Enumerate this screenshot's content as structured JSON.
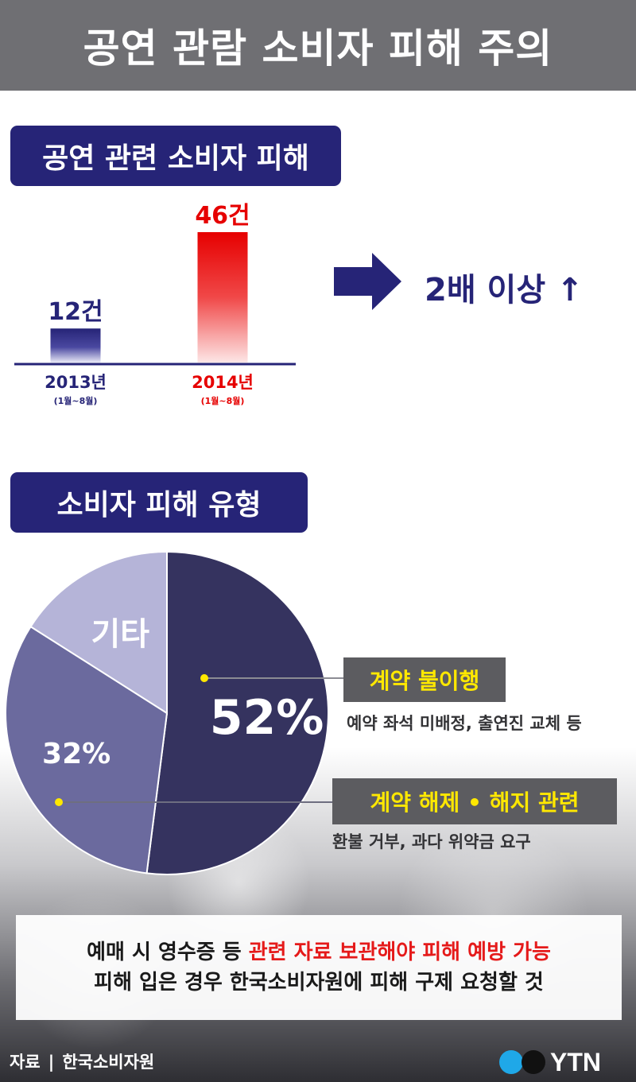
{
  "header": {
    "title": "공연 관람 소비자 피해 주의"
  },
  "section1": {
    "tag": "공연 관련 소비자 피해"
  },
  "section2": {
    "tag": "소비자 피해 유형"
  },
  "ratio": {
    "text": "2배 이상 ↑"
  },
  "pie_callouts": [
    {
      "label": "계약 불이행",
      "desc": "예약 좌석 미배정, 출연진 교체 등"
    },
    {
      "label": "계약 해제 • 해지 관련",
      "desc": "환불 거부, 과다 위약금 요구"
    }
  ],
  "note": {
    "line1_prefix": "예매 시 영수증 등 ",
    "line1_highlight": "관련 자료 보관해야 피해 예방 가능",
    "line2": "피해 입은 경우 한국소비자원에 피해 구제 요청할 것"
  },
  "source": {
    "label": "자료",
    "separator": "|",
    "value": "한국소비자원"
  },
  "logo": {
    "text": "YTN"
  },
  "colors": {
    "navy": "#262477",
    "red": "#e60000",
    "pie_dark": "#35335f",
    "pie_mid": "#6b6a9e",
    "pie_light": "#b5b4d8",
    "callout_bg": "#5c5c60",
    "callout_text": "#ffe800"
  },
  "chart_data": [
    {
      "type": "bar",
      "categories": [
        "2013년",
        "2014년"
      ],
      "periods": [
        "(1월~8월)",
        "(1월~8월)"
      ],
      "values": [
        12,
        46
      ],
      "value_labels": [
        "12건",
        "46건"
      ],
      "ylim": [
        0,
        46
      ]
    },
    {
      "type": "pie",
      "slices": [
        {
          "label": "계약 불이행",
          "value": 52,
          "value_label": "52%"
        },
        {
          "label": "계약 해제 • 해지 관련",
          "value": 32,
          "value_label": "32%"
        },
        {
          "label": "기타",
          "value": 16,
          "value_label": ""
        }
      ],
      "other_label": "기타"
    }
  ]
}
